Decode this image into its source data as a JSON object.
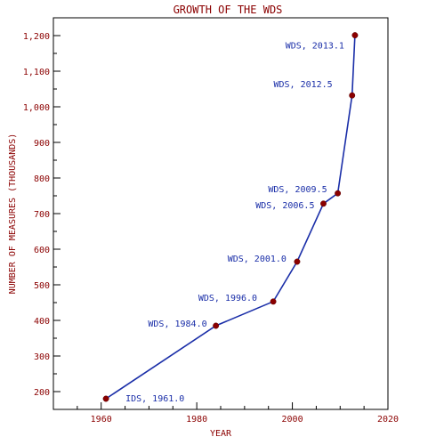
{
  "chart_data": {
    "type": "line",
    "title": "GROWTH OF THE WDS",
    "xlabel": "YEAR",
    "ylabel": "NUMBER OF MEASURES (THOUSANDS)",
    "xlim": [
      1950,
      2020
    ],
    "ylim": [
      150,
      1250
    ],
    "xticks": [
      1960,
      1980,
      2000,
      2020
    ],
    "yticks": [
      200,
      300,
      400,
      500,
      600,
      700,
      800,
      900,
      1000,
      1100,
      1200
    ],
    "ytick_labels": [
      "200",
      "300",
      "400",
      "500",
      "600",
      "700",
      "800",
      "900",
      "1,000",
      "1,100",
      "1,200"
    ],
    "colors": {
      "line": "#1a2ea8",
      "marker": "#8b0000",
      "text": "#8b0000",
      "annotation": "#1a2ea8"
    },
    "series": [
      {
        "x": [
          1961.0,
          1984.0,
          1996.0,
          2001.0,
          2006.5,
          2009.5,
          2012.5,
          2013.1
        ],
        "y": [
          180,
          385,
          453,
          565,
          728,
          757,
          1032,
          1201
        ]
      }
    ],
    "annotations": [
      "IDS, 1961.0",
      "WDS, 1984.0",
      "WDS, 1996.0",
      "WDS, 2001.0",
      "WDS, 2006.5",
      "WDS, 2009.5",
      "WDS, 2012.5",
      "WDS, 2013.1"
    ]
  }
}
